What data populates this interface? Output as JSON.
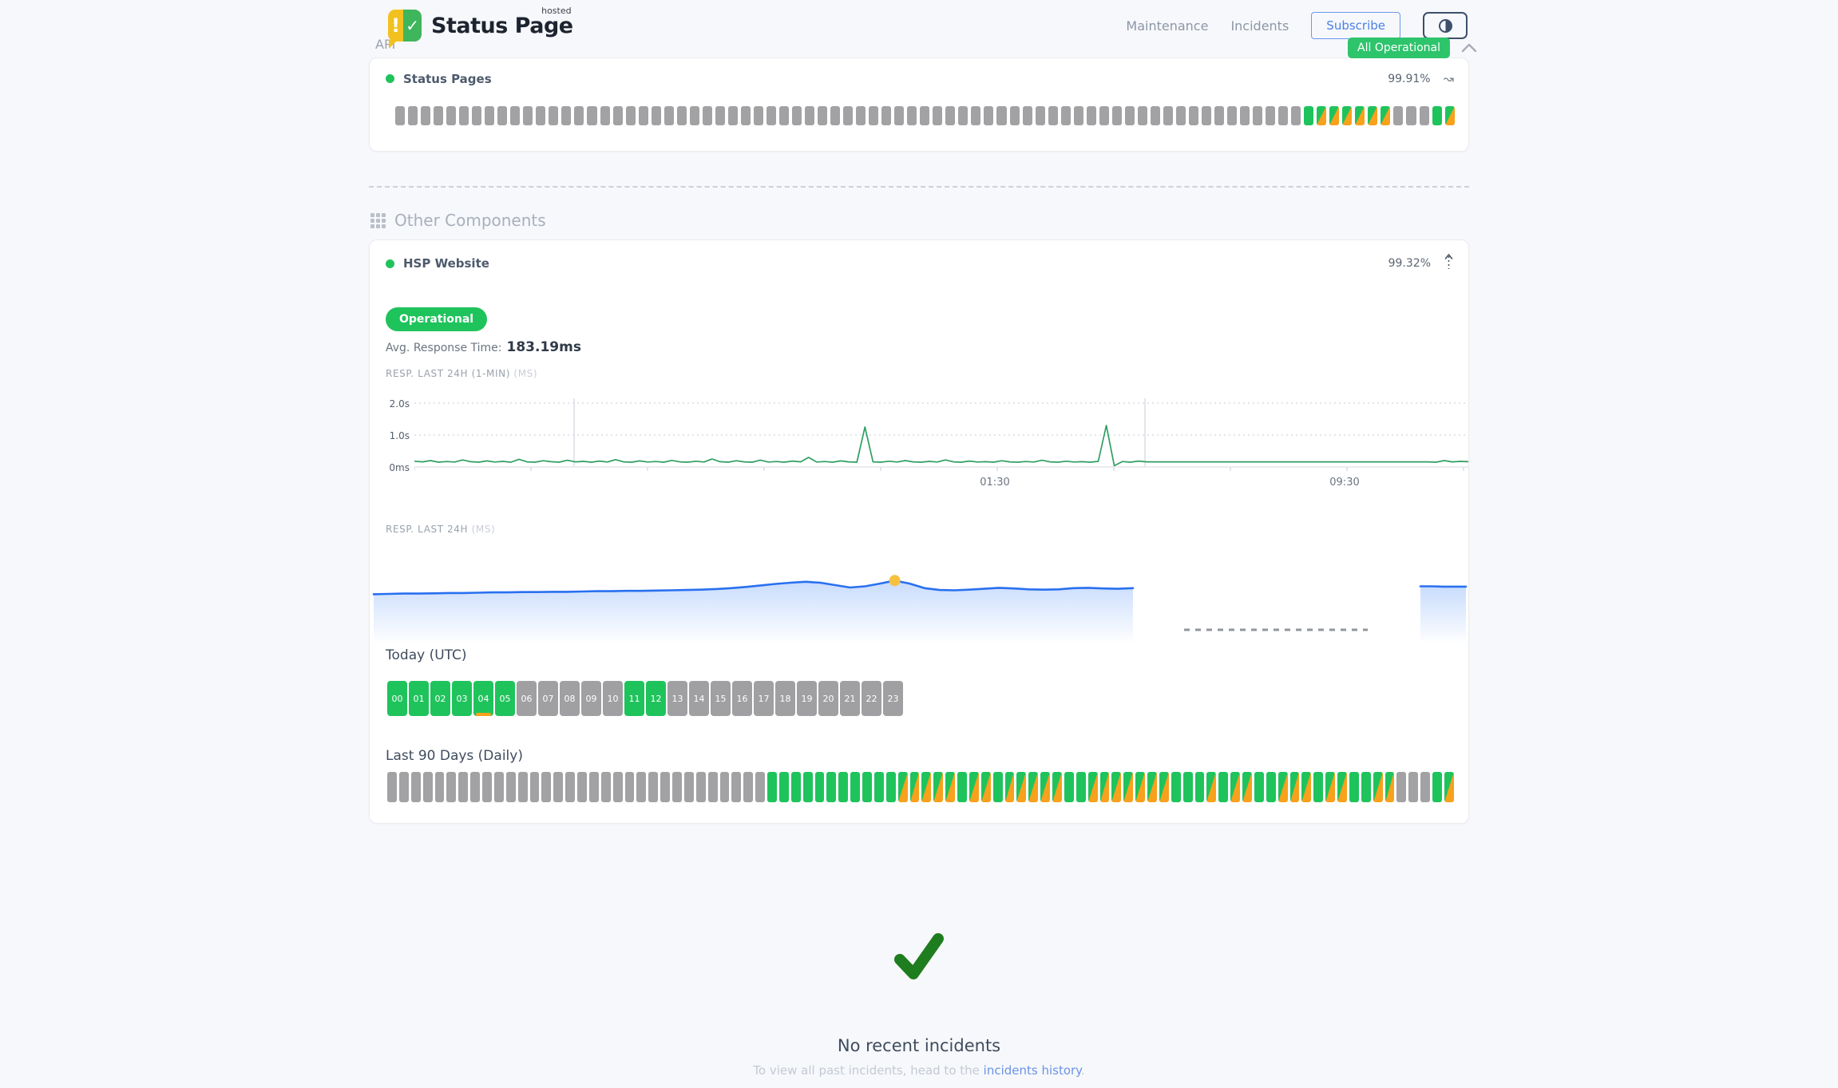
{
  "colors": {
    "green": "#1fc35c",
    "orange": "#f7a11c",
    "gray_bar": "#a2a2a4",
    "line_green": "#2f9e62",
    "line_blue": "#2970f0",
    "dot_yellow": "#f6c23e",
    "check_green": "#1e7d1e",
    "grid": "#d9dde3",
    "separator": "#e3e6ea",
    "dash_gap": "#90959e",
    "blue_fill": "#3b82f6"
  },
  "header": {
    "brand": "Status Page",
    "brand_sup": "hosted",
    "nav": [
      "Maintenance",
      "Incidents"
    ],
    "subscribe_label": "Subscribe",
    "overall_status": "All Operational"
  },
  "icons": {
    "logo_exclamation": "!",
    "logo_check": "✓",
    "trend_squiggle": "↝"
  },
  "api_section": {
    "title": "API",
    "component_name": "Status Pages",
    "uptime": "99.91%",
    "bars_rle": [
      [
        "gray",
        71
      ],
      [
        "green",
        1
      ],
      [
        "split",
        6
      ],
      [
        "gray",
        3
      ],
      [
        "green",
        1
      ],
      [
        "split",
        1
      ]
    ]
  },
  "other_components": {
    "title": "Other Components",
    "component_name": "HSP Website",
    "uptime": "99.32%",
    "status_badge": "Operational",
    "avg_label": "Avg. Response Time:",
    "avg_value": "183.19ms",
    "resp1_label": "RESP. LAST 24H (1-MIN)",
    "resp1_unit": "(MS)",
    "resp2_label": "RESP. LAST 24H",
    "resp2_unit": "(MS)",
    "today_title": "Today (UTC)",
    "today": {
      "hours": [
        "00",
        "01",
        "02",
        "03",
        "04",
        "05",
        "06",
        "07",
        "08",
        "09",
        "10",
        "11",
        "12",
        "13",
        "14",
        "15",
        "16",
        "17",
        "18",
        "19",
        "20",
        "21",
        "22",
        "23"
      ],
      "statuses": [
        "op",
        "op",
        "op",
        "op",
        "op",
        "op",
        "na",
        "na",
        "na",
        "na",
        "na",
        "op",
        "op",
        "na",
        "na",
        "na",
        "na",
        "na",
        "na",
        "na",
        "na",
        "na",
        "na",
        "na"
      ],
      "marker_index": 4
    },
    "last90_title": "Last 90 Days (Daily)",
    "bars90_rle": [
      [
        "gray",
        32
      ],
      [
        "green",
        11
      ],
      [
        "split",
        5
      ],
      [
        "green",
        1
      ],
      [
        "split",
        2
      ],
      [
        "green",
        1
      ],
      [
        "split",
        5
      ],
      [
        "green",
        2
      ],
      [
        "split",
        7
      ],
      [
        "green",
        3
      ],
      [
        "split",
        1
      ],
      [
        "green",
        1
      ],
      [
        "split",
        2
      ],
      [
        "green",
        2
      ],
      [
        "split",
        3
      ],
      [
        "green",
        1
      ],
      [
        "split",
        2
      ],
      [
        "green",
        2
      ],
      [
        "split",
        2
      ],
      [
        "gray",
        3
      ],
      [
        "green",
        1
      ],
      [
        "split",
        1
      ]
    ]
  },
  "chart_data": [
    {
      "type": "line",
      "title": "RESP. LAST 24H (1-MIN) (MS)",
      "unit": "ms",
      "ylim": [
        0,
        2000
      ],
      "y_ticks": [
        "2.0s",
        "1.0s",
        "0ms"
      ],
      "x_ticks": [
        {
          "label": "01:30"
        },
        {
          "label": "09:30"
        }
      ],
      "separators_x": [
        200,
        915
      ],
      "values": [
        180,
        160,
        200,
        150,
        170,
        155,
        220,
        165,
        150,
        190,
        155,
        175,
        150,
        240,
        160,
        150,
        195,
        165,
        150,
        210,
        160,
        175,
        150,
        185,
        155,
        230,
        160,
        150,
        190,
        155,
        170,
        150,
        205,
        160,
        150,
        180,
        155,
        250,
        165,
        150,
        195,
        160,
        150,
        215,
        155,
        170,
        150,
        185,
        160,
        300,
        155,
        170,
        150,
        190,
        160,
        150,
        1250,
        160,
        150,
        180,
        155,
        200,
        160,
        150,
        175,
        155,
        220,
        160,
        150,
        185,
        155,
        165,
        150,
        195,
        160,
        150,
        170,
        155,
        210,
        160,
        150,
        180,
        155,
        165,
        150,
        175,
        1300,
        40,
        170,
        150,
        185,
        160,
        160,
        160,
        160,
        160,
        160,
        160,
        160,
        160,
        160,
        160,
        160,
        160,
        160,
        160,
        160,
        160,
        160,
        160,
        160,
        160,
        160,
        160,
        160,
        160,
        160,
        160,
        160,
        160,
        160,
        160,
        160,
        160,
        160,
        160,
        160,
        150,
        200,
        160,
        175,
        165
      ]
    },
    {
      "type": "area",
      "title": "RESP. LAST 24H (MS)",
      "unit": "ms",
      "highlight_index": 35,
      "gap_dashed": true,
      "values": [
        170,
        171,
        172,
        172,
        173,
        174,
        174,
        175,
        176,
        176,
        177,
        177,
        178,
        178,
        179,
        180,
        180,
        181,
        181,
        182,
        183,
        184,
        185,
        187,
        190,
        194,
        199,
        204,
        208,
        211,
        208,
        200,
        192,
        196,
        205,
        215,
        205,
        190,
        184,
        183,
        185,
        188,
        191,
        189,
        186,
        185,
        186,
        190,
        191,
        189,
        188,
        190
      ],
      "tail_values": [
        196,
        196,
        195,
        195,
        195
      ]
    }
  ],
  "incidents": {
    "title": "No recent incidents",
    "subtitle_prefix": "To view all past incidents, head to the ",
    "link_text": "incidents history",
    "subtitle_suffix": "."
  }
}
